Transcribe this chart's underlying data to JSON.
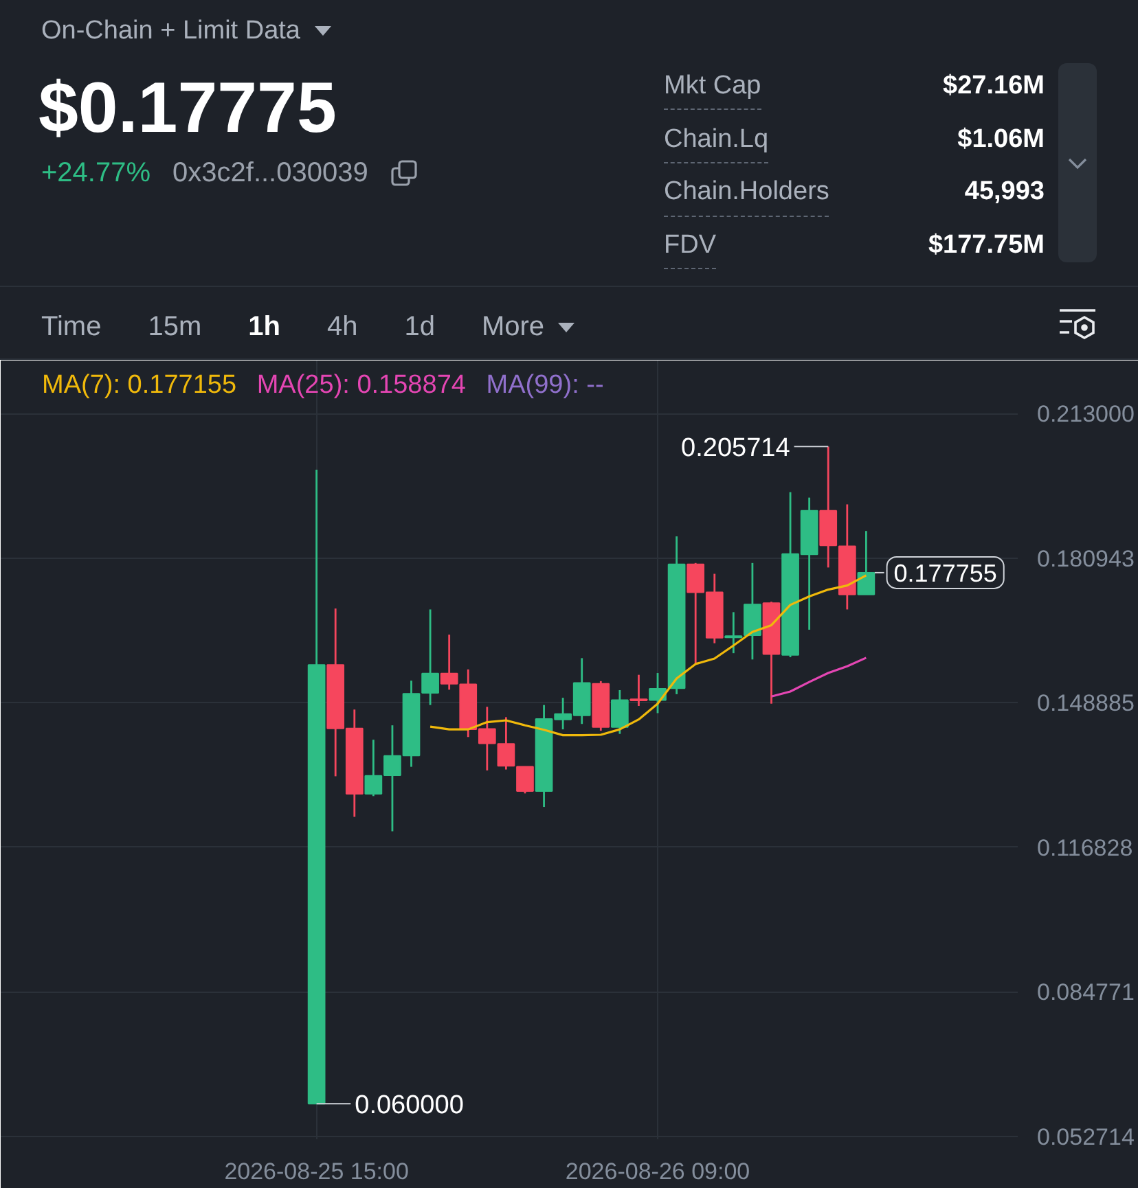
{
  "chart_data": {
    "type": "candlestick",
    "title": "On-Chain + Limit Data",
    "annotations": [
      "$0.17775",
      "+24.77%",
      "0x3c2f...030039",
      "Mkt Cap",
      "$27.16M",
      "Chain.Lq",
      "$1.06M",
      "Chain.Holders",
      "45,993",
      "FDV",
      "$177.75M",
      "Time",
      "15m",
      "1h",
      "4h",
      "1d",
      "More",
      {
        "text": "0.205714",
        "x": "2026-08-26T18:00",
        "y": 0.205714
      },
      {
        "text": "0.060000",
        "x": "2026-08-25T15:00",
        "y": 0.06
      },
      {
        "text": "0.177755",
        "x": "2026-08-26T20:00",
        "y": 0.177755
      }
    ],
    "x": [
      "2026-08-25T15:00",
      "2026-08-25T16:00",
      "2026-08-25T17:00",
      "2026-08-25T18:00",
      "2026-08-25T19:00",
      "2026-08-25T20:00",
      "2026-08-25T21:00",
      "2026-08-25T22:00",
      "2026-08-25T23:00",
      "2026-08-26T00:00",
      "2026-08-26T01:00",
      "2026-08-26T02:00",
      "2026-08-26T03:00",
      "2026-08-26T04:00",
      "2026-08-26T05:00",
      "2026-08-26T06:00",
      "2026-08-26T07:00",
      "2026-08-26T08:00",
      "2026-08-26T09:00",
      "2026-08-26T10:00",
      "2026-08-26T11:00",
      "2026-08-26T12:00",
      "2026-08-26T13:00",
      "2026-08-26T14:00",
      "2026-08-26T15:00",
      "2026-08-26T16:00",
      "2026-08-26T17:00",
      "2026-08-26T18:00",
      "2026-08-26T19:00",
      "2026-08-26T20:00"
    ],
    "ohlc": [
      [
        0.06,
        0.2006,
        0.06,
        0.1573
      ],
      [
        0.1573,
        0.1698,
        0.1326,
        0.1432
      ],
      [
        0.1432,
        0.1474,
        0.1236,
        0.1287
      ],
      [
        0.1287,
        0.1407,
        0.1282,
        0.1327
      ],
      [
        0.1328,
        0.1439,
        0.1204,
        0.1371
      ],
      [
        0.1372,
        0.1538,
        0.1347,
        0.1509
      ],
      [
        0.1511,
        0.1696,
        0.1484,
        0.1554
      ],
      [
        0.1554,
        0.164,
        0.1518,
        0.1531
      ],
      [
        0.153,
        0.1563,
        0.1413,
        0.143
      ],
      [
        0.1431,
        0.148,
        0.1339,
        0.1399
      ],
      [
        0.1398,
        0.1457,
        0.1341,
        0.1349
      ],
      [
        0.1347,
        0.1348,
        0.1288,
        0.1293
      ],
      [
        0.1293,
        0.1484,
        0.1258,
        0.1453
      ],
      [
        0.1452,
        0.15,
        0.143,
        0.1464
      ],
      [
        0.1461,
        0.1588,
        0.1442,
        0.1533
      ],
      [
        0.1531,
        0.1537,
        0.1427,
        0.1435
      ],
      [
        0.1435,
        0.1517,
        0.142,
        0.1495
      ],
      [
        0.1497,
        0.1551,
        0.1482,
        0.1494
      ],
      [
        0.1495,
        0.1555,
        0.1466,
        0.152
      ],
      [
        0.1521,
        0.1858,
        0.1508,
        0.1796
      ],
      [
        0.1796,
        0.1799,
        0.1575,
        0.1734
      ],
      [
        0.1734,
        0.1775,
        0.1621,
        0.1633
      ],
      [
        0.1634,
        0.169,
        0.1599,
        0.1637
      ],
      [
        0.1639,
        0.1799,
        0.1585,
        0.1707
      ],
      [
        0.171,
        0.1713,
        0.1487,
        0.1597
      ],
      [
        0.1595,
        0.1956,
        0.159,
        0.1819
      ],
      [
        0.1818,
        0.1944,
        0.1651,
        0.1915
      ],
      [
        0.1915,
        0.205714,
        0.1789,
        0.1838
      ],
      [
        0.1836,
        0.1929,
        0.1696,
        0.1729
      ],
      [
        0.1729,
        0.187,
        0.1729,
        0.177755
      ]
    ],
    "colors": [
      "#2ebd85",
      "#f6465d",
      "#f6465d",
      "#2ebd85",
      "#2ebd85",
      "#2ebd85",
      "#2ebd85",
      "#f6465d",
      "#f6465d",
      "#f6465d",
      "#f6465d",
      "#f6465d",
      "#2ebd85",
      "#2ebd85",
      "#2ebd85",
      "#f6465d",
      "#2ebd85",
      "#f6465d",
      "#2ebd85",
      "#2ebd85",
      "#f6465d",
      "#f6465d",
      "#2ebd85",
      "#2ebd85",
      "#f6465d",
      "#2ebd85",
      "#2ebd85",
      "#f6465d",
      "#f6465d",
      "#2ebd85"
    ],
    "series": [
      {
        "name": "MA(7): 0.177155",
        "type": "line",
        "color": "#f0b90b",
        "values": [
          null,
          null,
          null,
          null,
          null,
          null,
          0.1436,
          0.143,
          0.143,
          0.1446,
          0.145,
          0.1439,
          0.1429,
          0.1417,
          0.1417,
          0.1418,
          0.143,
          0.1452,
          0.1487,
          0.1543,
          0.1575,
          0.1587,
          0.1616,
          0.1646,
          0.1661,
          0.1706,
          0.1725,
          0.174,
          0.1749,
          0.177155
        ]
      },
      {
        "name": "MA(25): 0.158874",
        "type": "line",
        "color": "#e446b3",
        "values": [
          null,
          null,
          null,
          null,
          null,
          null,
          null,
          null,
          null,
          null,
          null,
          null,
          null,
          null,
          null,
          null,
          null,
          null,
          null,
          null,
          null,
          null,
          null,
          null,
          0.1503,
          0.1514,
          0.1535,
          0.1555,
          0.157,
          0.158874
        ]
      },
      {
        "name": "MA(99): --",
        "type": "line",
        "color": "#9070cc",
        "values": [
          null,
          null,
          null,
          null,
          null,
          null,
          null,
          null,
          null,
          null,
          null,
          null,
          null,
          null,
          null,
          null,
          null,
          null,
          null,
          null,
          null,
          null,
          null,
          null,
          null,
          null,
          null,
          null,
          null,
          null
        ]
      }
    ],
    "xlim": [
      "2026-08-24T22:20",
      "2026-08-27T04:00"
    ],
    "xticks": [
      {
        "value": "2026-08-25T15:00",
        "label": "2026-08-25 15:00"
      },
      {
        "value": "2026-08-26T09:00",
        "label": "2026-08-26 09:00"
      }
    ],
    "ylim": [
      0.0521,
      0.2248
    ],
    "yticks": [
      {
        "value": 0.213,
        "label": "0.213000"
      },
      0.180943,
      0.148885,
      0.116828,
      0.084771,
      0.052714
    ],
    "grid": true,
    "legend": "top left"
  }
}
